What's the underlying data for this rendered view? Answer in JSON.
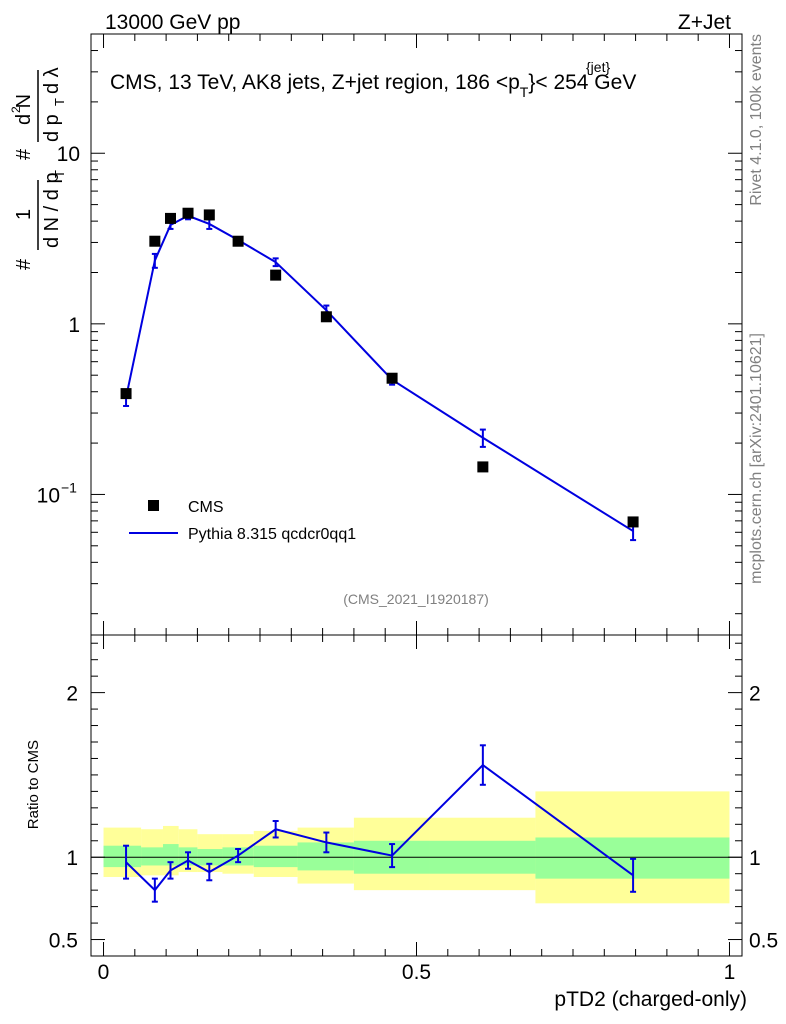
{
  "header": {
    "left": "13000 GeV pp",
    "right": "Z+Jet"
  },
  "side_labels": {
    "rivet": "Rivet 4.1.0,  100k events",
    "mcplots": "mcplots.cern.ch [arXiv:2401.10621]"
  },
  "colors": {
    "mc": "#0000e0",
    "data": "#000000",
    "band_inner": "#99ff99",
    "band_outer": "#ffff99"
  },
  "chart_data": [
    {
      "type": "scatter",
      "title": "CMS, 13 TeV, AK8 jets, Z+jet region, 186 <p_T^{jet}< 254 GeV",
      "title_parts": {
        "main": "CMS, 13 TeV, AK8 jets, Z+jet region, 186 <p",
        "sub": "T",
        "sup": "{jet}",
        "tail": "}< 254 GeV"
      },
      "ylabel": "1/(dN/dp_T) d²N/(dp_T dλ)",
      "ylabel_parts": {
        "hash": "#",
        "one": "1",
        "den": "d N / d p",
        "t": "T",
        "num": "d N",
        "num2": "d p",
        "lam": "d λ"
      },
      "yscale": "log",
      "ylim": [
        0.015,
        50
      ],
      "xlim": [
        -0.02,
        1.02
      ],
      "y_ticks": [
        {
          "value": 0.1,
          "label": "10",
          "exp": "−1"
        },
        {
          "value": 1,
          "label": "1",
          "exp": ""
        },
        {
          "value": 10,
          "label": "10",
          "exp": ""
        }
      ],
      "annotation": "(CMS_2021_I1920187)",
      "legend": [
        {
          "name": "CMS",
          "marker": "square"
        },
        {
          "name": "Pythia 8.315 qcdcr0qq1",
          "marker": "line"
        }
      ],
      "legend_position": "lower-left",
      "series": [
        {
          "name": "CMS",
          "x": [
            0.036,
            0.082,
            0.107,
            0.135,
            0.169,
            0.215,
            0.275,
            0.356,
            0.461,
            0.606,
            0.846
          ],
          "y": [
            0.39,
            3.05,
            4.15,
            4.45,
            4.35,
            3.05,
            1.93,
            1.1,
            0.48,
            0.145,
            0.069
          ]
        },
        {
          "name": "Pythia 8.315 qcdcr0qq1",
          "x": [
            0.036,
            0.082,
            0.107,
            0.135,
            0.169,
            0.215,
            0.275,
            0.356,
            0.461,
            0.606,
            0.846
          ],
          "y": [
            0.37,
            2.35,
            3.8,
            4.3,
            3.85,
            3.1,
            2.3,
            1.2,
            0.47,
            0.215,
            0.061
          ],
          "yerr": [
            0.04,
            0.22,
            0.2,
            0.2,
            0.25,
            0.1,
            0.12,
            0.08,
            0.03,
            0.025,
            0.007
          ]
        }
      ]
    },
    {
      "type": "line",
      "ylabel": "Ratio to CMS",
      "xlabel": "pTD2 (charged-only)",
      "xlim": [
        -0.02,
        1.02
      ],
      "ylim": [
        0.4,
        2.35
      ],
      "x_ticks": [
        {
          "value": 0,
          "label": "0"
        },
        {
          "value": 0.5,
          "label": "0.5"
        },
        {
          "value": 1,
          "label": "1"
        }
      ],
      "y_ticks": [
        {
          "value": 0.5,
          "label": "0.5"
        },
        {
          "value": 1,
          "label": "1"
        },
        {
          "value": 2,
          "label": "2"
        }
      ],
      "bands": {
        "edges": [
          0,
          0.06,
          0.095,
          0.12,
          0.15,
          0.19,
          0.24,
          0.31,
          0.4,
          0.52,
          0.69,
          1.0
        ],
        "inner": [
          [
            0.94,
            1.07
          ],
          [
            0.95,
            1.06
          ],
          [
            0.95,
            1.08
          ],
          [
            0.95,
            1.06
          ],
          [
            0.95,
            1.05
          ],
          [
            0.95,
            1.06
          ],
          [
            0.94,
            1.07
          ],
          [
            0.92,
            1.09
          ],
          [
            0.9,
            1.1
          ],
          [
            0.9,
            1.1
          ],
          [
            0.87,
            1.12
          ]
        ],
        "outer": [
          [
            0.88,
            1.18
          ],
          [
            0.89,
            1.17
          ],
          [
            0.89,
            1.19
          ],
          [
            0.91,
            1.17
          ],
          [
            0.91,
            1.14
          ],
          [
            0.9,
            1.14
          ],
          [
            0.88,
            1.16
          ],
          [
            0.84,
            1.18
          ],
          [
            0.8,
            1.24
          ],
          [
            0.8,
            1.24
          ],
          [
            0.72,
            1.4
          ]
        ]
      },
      "series": [
        {
          "name": "Pythia 8.315 qcdcr0qq1",
          "x": [
            0.036,
            0.082,
            0.107,
            0.135,
            0.169,
            0.215,
            0.275,
            0.356,
            0.461,
            0.606,
            0.846
          ],
          "y": [
            0.97,
            0.8,
            0.92,
            0.98,
            0.91,
            1.01,
            1.17,
            1.09,
            1.01,
            1.56,
            0.89
          ],
          "yerr": [
            0.1,
            0.07,
            0.05,
            0.05,
            0.05,
            0.04,
            0.05,
            0.06,
            0.07,
            0.12,
            0.1
          ]
        }
      ]
    }
  ]
}
